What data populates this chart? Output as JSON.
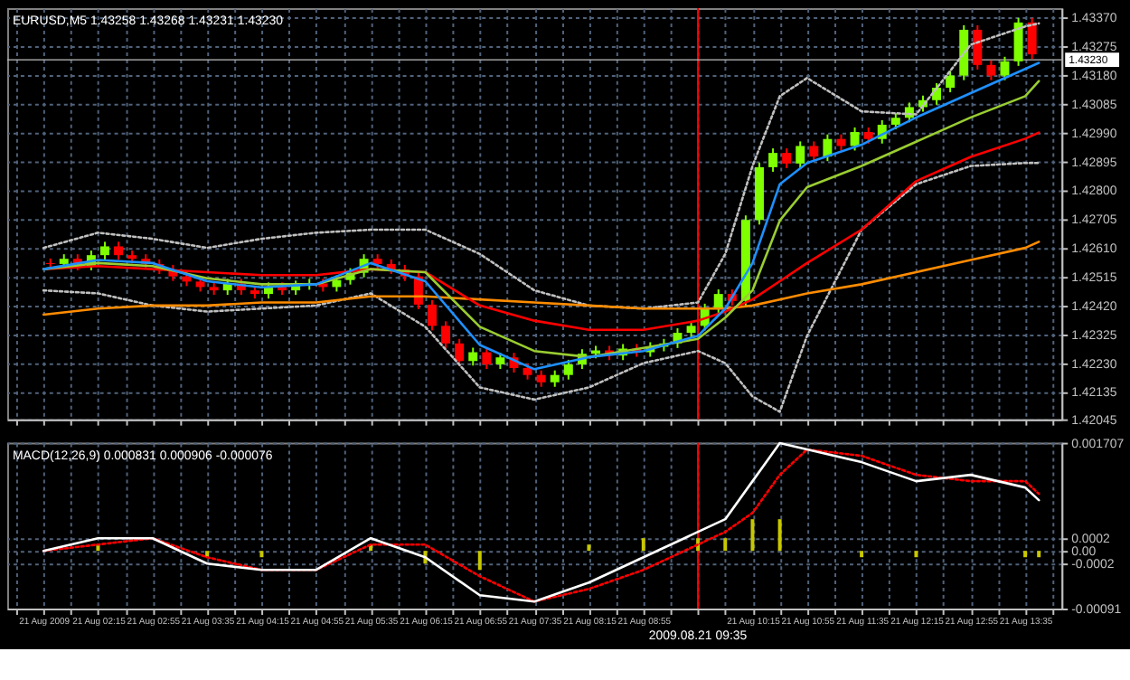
{
  "chart_data": [
    {
      "type": "candlestick",
      "title": "EURUSD,M5 1.43258 1.43268 1.43231 1.43230",
      "tick_labels": "y",
      "grid": true,
      "xlim": [
        "2009-08-21T01:15",
        "2009-08-21T13:55"
      ],
      "xticks": [
        {
          "value": "2009-08-21T01:15",
          "label": null
        },
        {
          "value": "2009-08-21T01:35",
          "label": null
        },
        {
          "value": "2009-08-21T01:55",
          "label": null
        },
        {
          "value": "2009-08-21T02:15",
          "label": null
        },
        {
          "value": "2009-08-21T02:35",
          "label": null
        },
        {
          "value": "2009-08-21T02:55",
          "label": null
        },
        {
          "value": "2009-08-21T03:15",
          "label": null
        },
        {
          "value": "2009-08-21T03:35",
          "label": null
        },
        {
          "value": "2009-08-21T03:55",
          "label": null
        },
        {
          "value": "2009-08-21T04:15",
          "label": null
        },
        {
          "value": "2009-08-21T04:35",
          "label": null
        },
        {
          "value": "2009-08-21T04:55",
          "label": null
        },
        {
          "value": "2009-08-21T05:15",
          "label": null
        },
        {
          "value": "2009-08-21T05:35",
          "label": null
        },
        {
          "value": "2009-08-21T05:55",
          "label": null
        },
        {
          "value": "2009-08-21T06:15",
          "label": null
        },
        {
          "value": "2009-08-21T06:35",
          "label": null
        },
        {
          "value": "2009-08-21T06:55",
          "label": null
        },
        {
          "value": "2009-08-21T07:15",
          "label": null
        },
        {
          "value": "2009-08-21T07:35",
          "label": null
        },
        {
          "value": "2009-08-21T07:55",
          "label": null
        },
        {
          "value": "2009-08-21T08:15",
          "label": null
        },
        {
          "value": "2009-08-21T08:35",
          "label": null
        },
        {
          "value": "2009-08-21T08:55",
          "label": null
        },
        {
          "value": "2009-08-21T09:15",
          "label": null
        },
        {
          "value": "2009-08-21T09:35",
          "label": null
        },
        {
          "value": "2009-08-21T09:55",
          "label": null
        },
        {
          "value": "2009-08-21T10:15",
          "label": null
        },
        {
          "value": "2009-08-21T10:35",
          "label": null
        },
        {
          "value": "2009-08-21T10:55",
          "label": null
        },
        {
          "value": "2009-08-21T11:15",
          "label": null
        },
        {
          "value": "2009-08-21T11:35",
          "label": null
        },
        {
          "value": "2009-08-21T11:55",
          "label": null
        },
        {
          "value": "2009-08-21T12:15",
          "label": null
        },
        {
          "value": "2009-08-21T12:35",
          "label": null
        },
        {
          "value": "2009-08-21T12:55",
          "label": null
        },
        {
          "value": "2009-08-21T13:15",
          "label": null
        },
        {
          "value": "2009-08-21T13:35",
          "label": null
        },
        {
          "value": "2009-08-21T13:55",
          "label": null
        }
      ],
      "ylim": [
        1.42045,
        1.434
      ],
      "yticks": [
        {
          "value": 1.4337,
          "label": "1.43370"
        },
        {
          "value": 1.43275,
          "label": "1.43275"
        },
        {
          "value": 1.4318,
          "label": "1.43180"
        },
        {
          "value": 1.43085,
          "label": "1.43085"
        },
        {
          "value": 1.4299,
          "label": "1.42990"
        },
        {
          "value": 1.42895,
          "label": "1.42895"
        },
        {
          "value": 1.428,
          "label": "1.42800"
        },
        {
          "value": 1.42705,
          "label": "1.42705"
        },
        {
          "value": 1.4261,
          "label": "1.42610"
        },
        {
          "value": 1.42515,
          "label": "1.42515"
        },
        {
          "value": 1.4242,
          "label": "1.42420"
        },
        {
          "value": 1.42325,
          "label": "1.42325"
        },
        {
          "value": 1.4223,
          "label": "1.42230"
        },
        {
          "value": 1.42135,
          "label": "1.42135"
        },
        {
          "value": 1.42045,
          "label": "1.42045"
        }
      ],
      "x": [
        "2009-08-21T01:40",
        "2009-08-21T01:50",
        "2009-08-21T02:00",
        "2009-08-21T02:10",
        "2009-08-21T02:20",
        "2009-08-21T02:30",
        "2009-08-21T02:40",
        "2009-08-21T02:50",
        "2009-08-21T03:00",
        "2009-08-21T03:10",
        "2009-08-21T03:20",
        "2009-08-21T03:30",
        "2009-08-21T03:40",
        "2009-08-21T03:50",
        "2009-08-21T04:00",
        "2009-08-21T04:10",
        "2009-08-21T04:20",
        "2009-08-21T04:30",
        "2009-08-21T04:40",
        "2009-08-21T04:50",
        "2009-08-21T05:00",
        "2009-08-21T05:10",
        "2009-08-21T05:20",
        "2009-08-21T05:30",
        "2009-08-21T05:40",
        "2009-08-21T05:50",
        "2009-08-21T06:00",
        "2009-08-21T06:10",
        "2009-08-21T06:20",
        "2009-08-21T06:30",
        "2009-08-21T06:40",
        "2009-08-21T06:50",
        "2009-08-21T07:00",
        "2009-08-21T07:10",
        "2009-08-21T07:20",
        "2009-08-21T07:30",
        "2009-08-21T07:40",
        "2009-08-21T07:50",
        "2009-08-21T08:00",
        "2009-08-21T08:10",
        "2009-08-21T08:20",
        "2009-08-21T08:30",
        "2009-08-21T08:40",
        "2009-08-21T08:50",
        "2009-08-21T09:00",
        "2009-08-21T09:10",
        "2009-08-21T09:20",
        "2009-08-21T09:30",
        "2009-08-21T09:40",
        "2009-08-21T09:50",
        "2009-08-21T10:00",
        "2009-08-21T10:10",
        "2009-08-21T10:20",
        "2009-08-21T10:30",
        "2009-08-21T10:40",
        "2009-08-21T10:50",
        "2009-08-21T11:00",
        "2009-08-21T11:10",
        "2009-08-21T11:20",
        "2009-08-21T11:30",
        "2009-08-21T11:40",
        "2009-08-21T11:50",
        "2009-08-21T12:00",
        "2009-08-21T12:10",
        "2009-08-21T12:20",
        "2009-08-21T12:30",
        "2009-08-21T12:40",
        "2009-08-21T12:50",
        "2009-08-21T13:00",
        "2009-08-21T13:10",
        "2009-08-21T13:20",
        "2009-08-21T13:30",
        "2009-08-21T13:40"
      ],
      "ohlc": [
        [
          1.4256,
          1.42575,
          1.42542,
          1.42557
        ],
        [
          1.42557,
          1.42589,
          1.42542,
          1.42574
        ],
        [
          1.42574,
          1.42589,
          1.42536,
          1.42551
        ],
        [
          1.42551,
          1.42601,
          1.42536,
          1.42586
        ],
        [
          1.42586,
          1.4263,
          1.42571,
          1.42615
        ],
        [
          1.42615,
          1.4263,
          1.42571,
          1.42586
        ],
        [
          1.42586,
          1.42601,
          1.42559,
          1.42574
        ],
        [
          1.42574,
          1.42589,
          1.42542,
          1.42557
        ],
        [
          1.42557,
          1.42572,
          1.42524,
          1.42539
        ],
        [
          1.42539,
          1.42554,
          1.42501,
          1.42516
        ],
        [
          1.42516,
          1.42531,
          1.42484,
          1.42499
        ],
        [
          1.42499,
          1.42514,
          1.42466,
          1.42481
        ],
        [
          1.42481,
          1.42496,
          1.42455,
          1.4247
        ],
        [
          1.4247,
          1.42508,
          1.42455,
          1.42493
        ],
        [
          1.42493,
          1.42508,
          1.42455,
          1.4247
        ],
        [
          1.4247,
          1.42485,
          1.42443,
          1.42458
        ],
        [
          1.42458,
          1.42496,
          1.42443,
          1.42481
        ],
        [
          1.42481,
          1.42496,
          1.42455,
          1.4247
        ],
        [
          1.4247,
          1.42502,
          1.42455,
          1.42487
        ],
        [
          1.42487,
          1.42508,
          1.42472,
          1.42493
        ],
        [
          1.42493,
          1.42508,
          1.42466,
          1.42481
        ],
        [
          1.42481,
          1.42519,
          1.42466,
          1.42504
        ],
        [
          1.42504,
          1.42543,
          1.42489,
          1.42528
        ],
        [
          1.42528,
          1.42589,
          1.42513,
          1.42574
        ],
        [
          1.42574,
          1.42589,
          1.42542,
          1.42557
        ],
        [
          1.42557,
          1.42572,
          1.42524,
          1.42539
        ],
        [
          1.42539,
          1.42554,
          1.42501,
          1.42516
        ],
        [
          1.42516,
          1.42531,
          1.42408,
          1.42423
        ],
        [
          1.42423,
          1.42438,
          1.42338,
          1.42353
        ],
        [
          1.42353,
          1.42368,
          1.4228,
          1.42295
        ],
        [
          1.42295,
          1.4231,
          1.42222,
          1.42237
        ],
        [
          1.42237,
          1.42281,
          1.42222,
          1.42266
        ],
        [
          1.42266,
          1.42281,
          1.42211,
          1.42226
        ],
        [
          1.42226,
          1.42264,
          1.42211,
          1.42249
        ],
        [
          1.42249,
          1.42264,
          1.42199,
          1.42214
        ],
        [
          1.42214,
          1.42229,
          1.42176,
          1.42191
        ],
        [
          1.42191,
          1.42206,
          1.42152,
          1.42167
        ],
        [
          1.42167,
          1.42206,
          1.42152,
          1.42191
        ],
        [
          1.42191,
          1.42241,
          1.42176,
          1.42226
        ],
        [
          1.42226,
          1.42276,
          1.42211,
          1.42261
        ],
        [
          1.42261,
          1.42287,
          1.42246,
          1.42272
        ],
        [
          1.42272,
          1.42287,
          1.4224,
          1.42255
        ],
        [
          1.42255,
          1.42293,
          1.4224,
          1.42278
        ],
        [
          1.42278,
          1.42293,
          1.42251,
          1.42266
        ],
        [
          1.42266,
          1.42299,
          1.42251,
          1.42284
        ],
        [
          1.42284,
          1.4231,
          1.42269,
          1.42295
        ],
        [
          1.42295,
          1.42345,
          1.4228,
          1.4233
        ],
        [
          1.4233,
          1.42368,
          1.42315,
          1.42353
        ],
        [
          1.42353,
          1.42426,
          1.42338,
          1.42411
        ],
        [
          1.42411,
          1.42473,
          1.42396,
          1.42458
        ],
        [
          1.42458,
          1.42473,
          1.4242,
          1.42435
        ],
        [
          1.42435,
          1.42717,
          1.4242,
          1.42702
        ],
        [
          1.42702,
          1.42891,
          1.42687,
          1.42876
        ],
        [
          1.42876,
          1.42938,
          1.42861,
          1.42923
        ],
        [
          1.42923,
          1.42938,
          1.42873,
          1.42888
        ],
        [
          1.42888,
          1.42961,
          1.42873,
          1.42946
        ],
        [
          1.42946,
          1.42961,
          1.42896,
          1.42911
        ],
        [
          1.42911,
          1.42984,
          1.42896,
          1.42969
        ],
        [
          1.42969,
          1.42984,
          1.42931,
          1.42946
        ],
        [
          1.42946,
          1.43007,
          1.42931,
          1.42992
        ],
        [
          1.42992,
          1.43007,
          1.42954,
          1.42969
        ],
        [
          1.42969,
          1.43031,
          1.42954,
          1.43016
        ],
        [
          1.43016,
          1.43054,
          1.43001,
          1.43039
        ],
        [
          1.43039,
          1.43089,
          1.43024,
          1.43074
        ],
        [
          1.43074,
          1.43112,
          1.43059,
          1.43097
        ],
        [
          1.43097,
          1.43153,
          1.43082,
          1.43138
        ],
        [
          1.43138,
          1.43193,
          1.43123,
          1.43178
        ],
        [
          1.43178,
          1.43344,
          1.43163,
          1.43329
        ],
        [
          1.43329,
          1.43344,
          1.43198,
          1.43213
        ],
        [
          1.43213,
          1.43228,
          1.43163,
          1.43178
        ],
        [
          1.43178,
          1.4324,
          1.43163,
          1.43225
        ],
        [
          1.43225,
          1.43368,
          1.4321,
          1.43353
        ],
        [
          1.43353,
          1.43368,
          1.43233,
          1.43248
        ]
      ],
      "colors": [
        "#ff0000",
        "#7fff00",
        "#ff0000",
        "#7fff00",
        "#7fff00",
        "#ff0000",
        "#ff0000",
        "#ff0000",
        "#ff0000",
        "#ff0000",
        "#ff0000",
        "#ff0000",
        "#ff0000",
        "#7fff00",
        "#ff0000",
        "#ff0000",
        "#7fff00",
        "#ff0000",
        "#7fff00",
        "#7fff00",
        "#ff0000",
        "#7fff00",
        "#7fff00",
        "#7fff00",
        "#ff0000",
        "#ff0000",
        "#ff0000",
        "#ff0000",
        "#ff0000",
        "#ff0000",
        "#ff0000",
        "#7fff00",
        "#ff0000",
        "#7fff00",
        "#ff0000",
        "#ff0000",
        "#ff0000",
        "#7fff00",
        "#7fff00",
        "#7fff00",
        "#7fff00",
        "#ff0000",
        "#7fff00",
        "#ff0000",
        "#7fff00",
        "#7fff00",
        "#7fff00",
        "#7fff00",
        "#7fff00",
        "#7fff00",
        "#ff0000",
        "#7fff00",
        "#7fff00",
        "#7fff00",
        "#ff0000",
        "#7fff00",
        "#ff0000",
        "#7fff00",
        "#ff0000",
        "#7fff00",
        "#ff0000",
        "#7fff00",
        "#7fff00",
        "#7fff00",
        "#7fff00",
        "#7fff00",
        "#7fff00",
        "#7fff00",
        "#ff0000",
        "#ff0000",
        "#7fff00",
        "#7fff00",
        "#ff0000"
      ],
      "series": [
        {
          "type": "line",
          "color": "#c0c0c0",
          "line_style": "dotted",
          "x": [
            "2009-08-21T01:35",
            "2009-08-21T02:15",
            "2009-08-21T02:55",
            "2009-08-21T03:35",
            "2009-08-21T04:15",
            "2009-08-21T04:55",
            "2009-08-21T05:35",
            "2009-08-21T06:15",
            "2009-08-21T06:55",
            "2009-08-21T07:35",
            "2009-08-21T08:15",
            "2009-08-21T08:55",
            "2009-08-21T09:35",
            "2009-08-21T09:55",
            "2009-08-21T10:15",
            "2009-08-21T10:35",
            "2009-08-21T10:55",
            "2009-08-21T11:35",
            "2009-08-21T12:15",
            "2009-08-21T12:55",
            "2009-08-21T13:35",
            "2009-08-21T13:45"
          ],
          "values": [
            1.4261,
            1.4266,
            1.4264,
            1.4261,
            1.4264,
            1.4266,
            1.4267,
            1.4267,
            1.4259,
            1.4247,
            1.4242,
            1.4241,
            1.4243,
            1.4259,
            1.4288,
            1.4311,
            1.4317,
            1.4306,
            1.4305,
            1.4328,
            1.4334,
            1.4335
          ]
        },
        {
          "type": "line",
          "color": "#c0c0c0",
          "line_style": "dotted",
          "x": [
            "2009-08-21T01:35",
            "2009-08-21T02:15",
            "2009-08-21T02:55",
            "2009-08-21T03:35",
            "2009-08-21T04:15",
            "2009-08-21T04:55",
            "2009-08-21T05:35",
            "2009-08-21T06:15",
            "2009-08-21T06:55",
            "2009-08-21T07:35",
            "2009-08-21T08:15",
            "2009-08-21T08:55",
            "2009-08-21T09:35",
            "2009-08-21T09:55",
            "2009-08-21T10:15",
            "2009-08-21T10:35",
            "2009-08-21T10:55",
            "2009-08-21T11:35",
            "2009-08-21T12:15",
            "2009-08-21T12:55",
            "2009-08-21T13:35",
            "2009-08-21T13:45"
          ],
          "values": [
            1.4247,
            1.4246,
            1.4242,
            1.424,
            1.4241,
            1.4242,
            1.4246,
            1.4235,
            1.4215,
            1.4211,
            1.4215,
            1.4223,
            1.4227,
            1.4223,
            1.4212,
            1.4207,
            1.4232,
            1.4267,
            1.4282,
            1.4288,
            1.4289,
            1.4289
          ]
        },
        {
          "type": "line",
          "color": "#ff8c00",
          "line_style": "solid",
          "x": [
            "2009-08-21T01:35",
            "2009-08-21T02:15",
            "2009-08-21T02:55",
            "2009-08-21T03:35",
            "2009-08-21T04:15",
            "2009-08-21T04:55",
            "2009-08-21T05:35",
            "2009-08-21T06:15",
            "2009-08-21T06:55",
            "2009-08-21T07:35",
            "2009-08-21T08:15",
            "2009-08-21T08:55",
            "2009-08-21T09:35",
            "2009-08-21T09:55",
            "2009-08-21T10:15",
            "2009-08-21T10:35",
            "2009-08-21T10:55",
            "2009-08-21T11:35",
            "2009-08-21T12:15",
            "2009-08-21T12:55",
            "2009-08-21T13:35",
            "2009-08-21T13:45"
          ],
          "values": [
            1.4239,
            1.4241,
            1.4242,
            1.4242,
            1.4243,
            1.4243,
            1.4245,
            1.4245,
            1.4244,
            1.4243,
            1.4242,
            1.4241,
            1.4241,
            1.4241,
            1.4242,
            1.4244,
            1.4246,
            1.4249,
            1.4253,
            1.4257,
            1.4261,
            1.4263
          ]
        },
        {
          "type": "line",
          "color": "#ff0000",
          "line_style": "solid",
          "x": [
            "2009-08-21T01:35",
            "2009-08-21T02:15",
            "2009-08-21T02:55",
            "2009-08-21T03:35",
            "2009-08-21T04:15",
            "2009-08-21T04:55",
            "2009-08-21T05:35",
            "2009-08-21T06:15",
            "2009-08-21T06:55",
            "2009-08-21T07:35",
            "2009-08-21T08:15",
            "2009-08-21T08:55",
            "2009-08-21T09:35",
            "2009-08-21T09:55",
            "2009-08-21T10:15",
            "2009-08-21T10:35",
            "2009-08-21T10:55",
            "2009-08-21T11:35",
            "2009-08-21T12:15",
            "2009-08-21T12:55",
            "2009-08-21T13:35",
            "2009-08-21T13:45"
          ],
          "values": [
            1.4254,
            1.4255,
            1.4254,
            1.4253,
            1.4252,
            1.4252,
            1.4254,
            1.4253,
            1.4242,
            1.4237,
            1.4234,
            1.4234,
            1.4237,
            1.424,
            1.4244,
            1.425,
            1.4256,
            1.4267,
            1.4283,
            1.4291,
            1.4297,
            1.4299
          ]
        },
        {
          "type": "line",
          "color": "#9acd32",
          "line_style": "solid",
          "x": [
            "2009-08-21T01:35",
            "2009-08-21T02:15",
            "2009-08-21T02:55",
            "2009-08-21T03:35",
            "2009-08-21T04:15",
            "2009-08-21T04:55",
            "2009-08-21T05:35",
            "2009-08-21T06:15",
            "2009-08-21T06:55",
            "2009-08-21T07:35",
            "2009-08-21T08:15",
            "2009-08-21T08:55",
            "2009-08-21T09:35",
            "2009-08-21T09:55",
            "2009-08-21T10:15",
            "2009-08-21T10:35",
            "2009-08-21T10:55",
            "2009-08-21T11:35",
            "2009-08-21T12:15",
            "2009-08-21T12:55",
            "2009-08-21T13:35",
            "2009-08-21T13:45"
          ],
          "values": [
            1.4254,
            1.4256,
            1.4255,
            1.4251,
            1.4249,
            1.4249,
            1.4254,
            1.4253,
            1.4235,
            1.4227,
            1.4225,
            1.4228,
            1.4231,
            1.4238,
            1.4247,
            1.427,
            1.4281,
            1.4288,
            1.4296,
            1.4304,
            1.4311,
            1.4316
          ]
        },
        {
          "type": "line",
          "color": "#1e90ff",
          "line_style": "solid",
          "x": [
            "2009-08-21T01:35",
            "2009-08-21T02:15",
            "2009-08-21T02:55",
            "2009-08-21T03:35",
            "2009-08-21T04:15",
            "2009-08-21T04:55",
            "2009-08-21T05:35",
            "2009-08-21T06:15",
            "2009-08-21T06:55",
            "2009-08-21T07:35",
            "2009-08-21T08:15",
            "2009-08-21T08:55",
            "2009-08-21T09:35",
            "2009-08-21T09:55",
            "2009-08-21T10:15",
            "2009-08-21T10:35",
            "2009-08-21T10:55",
            "2009-08-21T11:35",
            "2009-08-21T12:15",
            "2009-08-21T12:55",
            "2009-08-21T13:35",
            "2009-08-21T13:45"
          ],
          "values": [
            1.4254,
            1.4257,
            1.4256,
            1.425,
            1.4248,
            1.4249,
            1.4256,
            1.425,
            1.4229,
            1.4221,
            1.4225,
            1.4227,
            1.4232,
            1.4241,
            1.4256,
            1.4282,
            1.4289,
            1.4295,
            1.4304,
            1.4312,
            1.432,
            1.4322
          ]
        }
      ],
      "ref_lines": [
        {
          "axis": "x",
          "value": "2009-08-21T09:35",
          "color": "#ff0000",
          "line_style": "solid"
        },
        {
          "axis": "y",
          "value": 1.4323,
          "label": "1.43230",
          "color": "#c0c0c0",
          "line_style": "solid"
        }
      ]
    },
    {
      "type": "bar",
      "title": "MACD(12,26,9) 0.000831 0.000906 -0.000076",
      "grid": true,
      "xlim": [
        "2009-08-21T01:15",
        "2009-08-21T13:55"
      ],
      "xticks": [
        {
          "value": "2009-08-21T01:15",
          "label": null
        },
        {
          "value": "2009-08-21T01:35",
          "label": "21 Aug 2009"
        },
        {
          "value": "2009-08-21T01:55",
          "label": null
        },
        {
          "value": "2009-08-21T02:15",
          "label": "21 Aug 02:15"
        },
        {
          "value": "2009-08-21T02:35",
          "label": null
        },
        {
          "value": "2009-08-21T02:55",
          "label": "21 Aug 02:55"
        },
        {
          "value": "2009-08-21T03:15",
          "label": null
        },
        {
          "value": "2009-08-21T03:35",
          "label": "21 Aug 03:35"
        },
        {
          "value": "2009-08-21T03:55",
          "label": null
        },
        {
          "value": "2009-08-21T04:15",
          "label": "21 Aug 04:15"
        },
        {
          "value": "2009-08-21T04:35",
          "label": null
        },
        {
          "value": "2009-08-21T04:55",
          "label": "21 Aug 04:55"
        },
        {
          "value": "2009-08-21T05:15",
          "label": null
        },
        {
          "value": "2009-08-21T05:35",
          "label": "21 Aug 05:35"
        },
        {
          "value": "2009-08-21T05:55",
          "label": null
        },
        {
          "value": "2009-08-21T06:15",
          "label": "21 Aug 06:15"
        },
        {
          "value": "2009-08-21T06:35",
          "label": null
        },
        {
          "value": "2009-08-21T06:55",
          "label": "21 Aug 06:55"
        },
        {
          "value": "2009-08-21T07:15",
          "label": null
        },
        {
          "value": "2009-08-21T07:35",
          "label": "21 Aug 07:35"
        },
        {
          "value": "2009-08-21T07:55",
          "label": null
        },
        {
          "value": "2009-08-21T08:15",
          "label": "21 Aug 08:15"
        },
        {
          "value": "2009-08-21T08:35",
          "label": null
        },
        {
          "value": "2009-08-21T08:55",
          "label": "21 Aug 08:55"
        },
        {
          "value": "2009-08-21T09:15",
          "label": null
        },
        {
          "value": "2009-08-21T09:35",
          "label": null
        },
        {
          "value": "2009-08-21T09:55",
          "label": null
        },
        {
          "value": "2009-08-21T10:15",
          "label": "21 Aug 10:15"
        },
        {
          "value": "2009-08-21T10:35",
          "label": null
        },
        {
          "value": "2009-08-21T10:55",
          "label": "21 Aug 10:55"
        },
        {
          "value": "2009-08-21T11:15",
          "label": null
        },
        {
          "value": "2009-08-21T11:35",
          "label": "21 Aug 11:35"
        },
        {
          "value": "2009-08-21T11:55",
          "label": null
        },
        {
          "value": "2009-08-21T12:15",
          "label": "21 Aug 12:15"
        },
        {
          "value": "2009-08-21T12:35",
          "label": null
        },
        {
          "value": "2009-08-21T12:55",
          "label": "21 Aug 12:55"
        },
        {
          "value": "2009-08-21T13:15",
          "label": null
        },
        {
          "value": "2009-08-21T13:35",
          "label": "21 Aug 13:35"
        },
        {
          "value": "2009-08-21T13:55",
          "label": null
        }
      ],
      "ylim": [
        -0.00091,
        0.001707
      ],
      "yticks": [
        0.001707,
        0.0002,
        {
          "value": 0,
          "label": "0.00"
        },
        -0.0002,
        -0.00091
      ],
      "series": [
        {
          "type": "bar",
          "color": "#c8c800",
          "x": [
            "2009-08-21T01:35",
            "2009-08-21T02:15",
            "2009-08-21T02:55",
            "2009-08-21T03:35",
            "2009-08-21T04:15",
            "2009-08-21T04:55",
            "2009-08-21T05:35",
            "2009-08-21T06:15",
            "2009-08-21T06:55",
            "2009-08-21T07:35",
            "2009-08-21T08:15",
            "2009-08-21T08:55",
            "2009-08-21T09:35",
            "2009-08-21T09:55",
            "2009-08-21T10:15",
            "2009-08-21T10:35",
            "2009-08-21T10:55",
            "2009-08-21T11:35",
            "2009-08-21T12:15",
            "2009-08-21T12:55",
            "2009-08-21T13:35",
            "2009-08-21T13:45"
          ],
          "values": [
            0,
            0.0001,
            0,
            -0.0001,
            -0.0001,
            0,
            0.0001,
            -0.0002,
            -0.0003,
            0,
            0.0001,
            0.0002,
            0.0002,
            0.0002,
            0.0005,
            0.0005,
            0,
            -0.0001,
            -0.0001,
            0,
            -0.0001,
            -0.0001
          ]
        },
        {
          "type": "line",
          "color": "#ff0000",
          "line_style": "dotted",
          "x": [
            "2009-08-21T01:35",
            "2009-08-21T02:15",
            "2009-08-21T02:55",
            "2009-08-21T03:35",
            "2009-08-21T04:15",
            "2009-08-21T04:55",
            "2009-08-21T05:35",
            "2009-08-21T06:15",
            "2009-08-21T06:55",
            "2009-08-21T07:35",
            "2009-08-21T08:15",
            "2009-08-21T08:55",
            "2009-08-21T09:35",
            "2009-08-21T09:55",
            "2009-08-21T10:15",
            "2009-08-21T10:35",
            "2009-08-21T10:55",
            "2009-08-21T11:35",
            "2009-08-21T12:15",
            "2009-08-21T12:55",
            "2009-08-21T13:35",
            "2009-08-21T13:45"
          ],
          "values": [
            0,
            0.0001,
            0.0002,
            -0.0001,
            -0.0003,
            -0.0003,
            0.0001,
            0.0001,
            -0.0004,
            -0.0008,
            -0.0006,
            -0.0003,
            0.0001,
            0.0003,
            0.0006,
            0.0012,
            0.0016,
            0.0015,
            0.0012,
            0.0011,
            0.0011,
            0.0009
          ]
        },
        {
          "type": "line",
          "color": "#ffffff",
          "line_style": "solid",
          "x": [
            "2009-08-21T01:35",
            "2009-08-21T02:15",
            "2009-08-21T02:55",
            "2009-08-21T03:35",
            "2009-08-21T04:15",
            "2009-08-21T04:55",
            "2009-08-21T05:35",
            "2009-08-21T06:15",
            "2009-08-21T06:55",
            "2009-08-21T07:35",
            "2009-08-21T08:15",
            "2009-08-21T08:55",
            "2009-08-21T09:35",
            "2009-08-21T09:55",
            "2009-08-21T10:15",
            "2009-08-21T10:35",
            "2009-08-21T10:55",
            "2009-08-21T11:35",
            "2009-08-21T12:15",
            "2009-08-21T12:55",
            "2009-08-21T13:35",
            "2009-08-21T13:45"
          ],
          "values": [
            0,
            0.0002,
            0.0002,
            -0.0002,
            -0.0003,
            -0.0003,
            0.0002,
            -0.0001,
            -0.0007,
            -0.0008,
            -0.0005,
            -0.0001,
            0.0003,
            0.0005,
            0.0011,
            0.0017,
            0.0016,
            0.0014,
            0.0011,
            0.0012,
            0.001,
            0.0008
          ]
        }
      ],
      "ref_lines": [
        {
          "axis": "x",
          "value": "2009-08-21T09:35",
          "label": "2009.08.21 09:35",
          "color": "#ff0000",
          "line_style": "solid"
        }
      ]
    }
  ]
}
